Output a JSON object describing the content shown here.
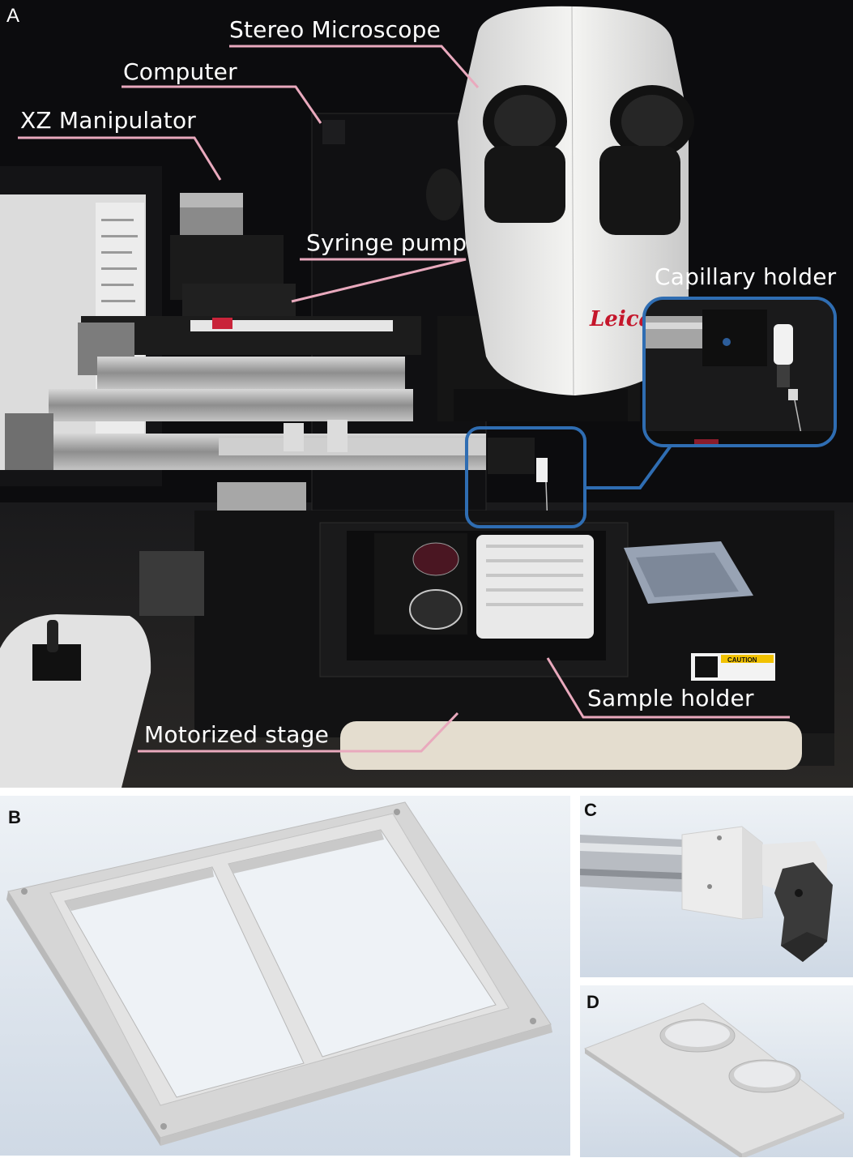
{
  "panels": {
    "a": {
      "letter": "A",
      "labels": {
        "stereo_microscope": "Stereo Microscope",
        "computer": "Computer",
        "xz_manipulator": "XZ Manipulator",
        "syringe_pump": "Syringe pump",
        "capillary_holder": "Capillary holder",
        "sample_holder": "Sample holder",
        "motorized_stage": "Motorized stage"
      },
      "microscope_brand": "Leica",
      "caution_label": "CAUTION"
    },
    "b": {
      "letter": "B"
    },
    "c": {
      "letter": "C"
    },
    "d": {
      "letter": "D"
    }
  },
  "colors": {
    "leader_line": "#e9a9bd",
    "inset_border": "#2f6db2",
    "render_bg": "#dfe6ee",
    "part_gray": "#d9d9d9"
  }
}
